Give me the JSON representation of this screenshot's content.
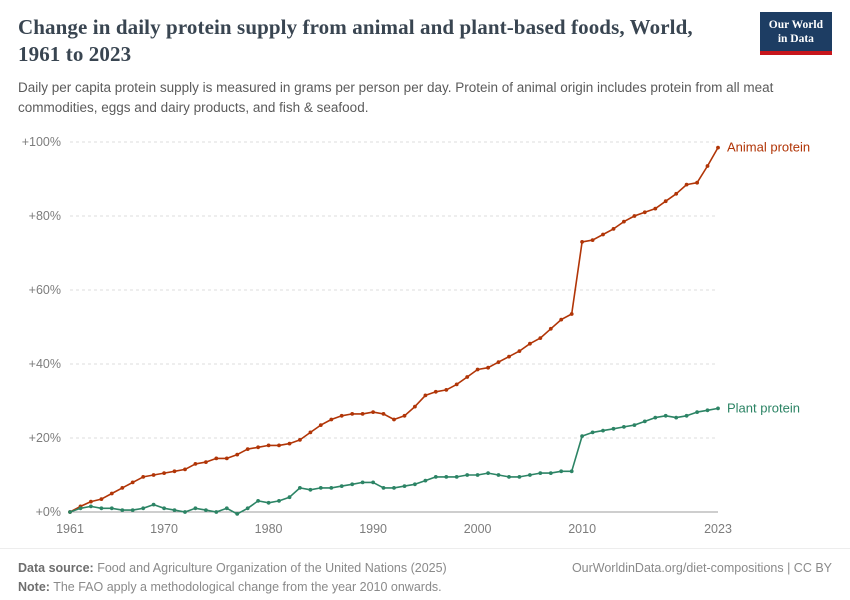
{
  "header": {
    "title": "Change in daily protein supply from animal and plant-based foods, World, 1961 to 2023",
    "subtitle": "Daily per capita protein supply is measured in grams per person per day. Protein of animal origin includes protein from all meat commodities, eggs and dairy products, and fish & seafood.",
    "logo": {
      "line1": "Our World",
      "line2": "in Data"
    }
  },
  "chart_data": {
    "type": "line",
    "x": [
      1961,
      1962,
      1963,
      1964,
      1965,
      1966,
      1967,
      1968,
      1969,
      1970,
      1971,
      1972,
      1973,
      1974,
      1975,
      1976,
      1977,
      1978,
      1979,
      1980,
      1981,
      1982,
      1983,
      1984,
      1985,
      1986,
      1987,
      1988,
      1989,
      1990,
      1991,
      1992,
      1993,
      1994,
      1995,
      1996,
      1997,
      1998,
      1999,
      2000,
      2001,
      2002,
      2003,
      2004,
      2005,
      2006,
      2007,
      2008,
      2009,
      2010,
      2011,
      2012,
      2013,
      2014,
      2015,
      2016,
      2017,
      2018,
      2019,
      2020,
      2021,
      2022,
      2023
    ],
    "series": [
      {
        "name": "Animal protein",
        "color": "#b13507",
        "values": [
          0,
          1.5,
          2.8,
          3.5,
          5.0,
          6.5,
          8.0,
          9.5,
          10.0,
          10.5,
          11.0,
          11.5,
          13.0,
          13.5,
          14.5,
          14.5,
          15.5,
          17.0,
          17.5,
          18.0,
          18.0,
          18.5,
          19.5,
          21.5,
          23.5,
          25.0,
          26.0,
          26.5,
          26.5,
          27.0,
          26.5,
          25.0,
          26.0,
          28.5,
          31.5,
          32.5,
          33.0,
          34.5,
          36.5,
          38.5,
          39.0,
          40.5,
          42.0,
          43.5,
          45.5,
          47.0,
          49.5,
          52.0,
          53.5,
          73.0,
          73.5,
          75.0,
          76.5,
          78.5,
          80.0,
          81.0,
          82.0,
          84.0,
          86.0,
          88.5,
          89.0,
          93.5,
          98.5
        ]
      },
      {
        "name": "Plant protein",
        "color": "#2c8465",
        "values": [
          0,
          1.0,
          1.5,
          1.0,
          1.0,
          0.5,
          0.5,
          1.0,
          2.0,
          1.0,
          0.5,
          0.0,
          1.0,
          0.5,
          0.0,
          1.0,
          -0.5,
          1.0,
          3.0,
          2.5,
          3.0,
          4.0,
          6.5,
          6.0,
          6.5,
          6.5,
          7.0,
          7.5,
          8.0,
          8.0,
          6.5,
          6.5,
          7.0,
          7.5,
          8.5,
          9.5,
          9.5,
          9.5,
          10.0,
          10.0,
          10.5,
          10.0,
          9.5,
          9.5,
          10.0,
          10.5,
          10.5,
          11.0,
          11.0,
          20.5,
          21.5,
          22.0,
          22.5,
          23.0,
          23.5,
          24.5,
          25.5,
          26.0,
          25.5,
          26.0,
          27.0,
          27.5,
          28.0
        ]
      }
    ],
    "title": "Change in daily protein supply from animal and plant-based foods, World, 1961 to 2023",
    "xlabel": "",
    "ylabel": "",
    "ylim": [
      0,
      100
    ],
    "ytick_values": [
      0,
      20,
      40,
      60,
      80,
      100
    ],
    "ytick_labels": [
      "+0%",
      "+20%",
      "+40%",
      "+60%",
      "+80%",
      "+100%"
    ],
    "xticks": [
      1961,
      1970,
      1980,
      1990,
      2000,
      2010,
      2023
    ],
    "grid": "horizontal-dashed",
    "legend_position": "line-end-labels"
  },
  "footer": {
    "datasource_label": "Data source:",
    "datasource_text": " Food and Agriculture Organization of the United Nations (2025)",
    "rights": "OurWorldinData.org/diet-compositions | CC BY",
    "note_label": "Note:",
    "note_text": " The FAO apply a methodological change from the year 2010 onwards."
  }
}
